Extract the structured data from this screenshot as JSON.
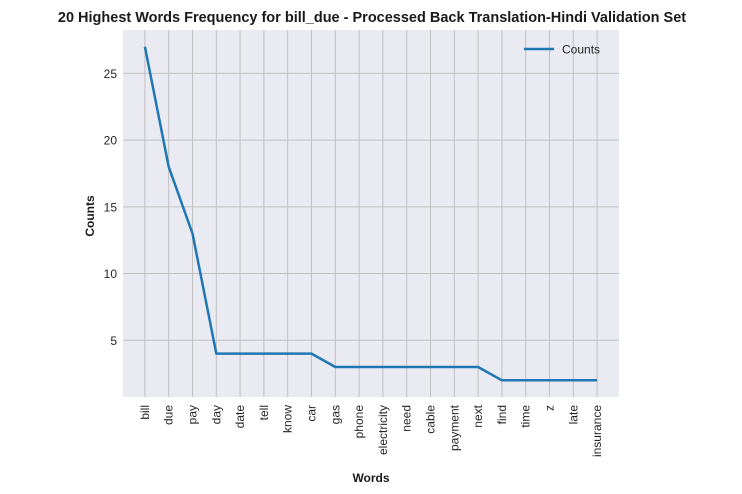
{
  "chart_data": {
    "type": "line",
    "title": "20 Highest Words Frequency for bill_due - Processed Back Translation-Hindi Validation Set",
    "xlabel": "Words",
    "ylabel": "Counts",
    "categories": [
      "bill",
      "due",
      "pay",
      "day",
      "date",
      "tell",
      "know",
      "car",
      "gas",
      "phone",
      "electricity",
      "need",
      "cable",
      "payment",
      "next",
      "find",
      "time",
      "z",
      "late",
      "insurance"
    ],
    "series": [
      {
        "name": "Counts",
        "values": [
          27,
          18,
          13,
          4,
          4,
          4,
          4,
          4,
          3,
          3,
          3,
          3,
          3,
          3,
          3,
          2,
          2,
          2,
          2,
          2
        ]
      }
    ],
    "yticks": [
      5,
      10,
      15,
      20,
      25
    ],
    "ylim": [
      0.75,
      28.25
    ],
    "grid": true,
    "legend": "top-right",
    "colors": {
      "line": "#1f77b4",
      "plot_bg": "#eaeaf2",
      "grid": "#c0c0c0"
    }
  }
}
